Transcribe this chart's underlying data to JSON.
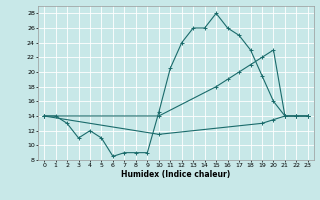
{
  "xlabel": "Humidex (Indice chaleur)",
  "xlim": [
    -0.5,
    23.5
  ],
  "ylim": [
    8,
    29
  ],
  "yticks": [
    8,
    10,
    12,
    14,
    16,
    18,
    20,
    22,
    24,
    26,
    28
  ],
  "xticks": [
    0,
    1,
    2,
    3,
    4,
    5,
    6,
    7,
    8,
    9,
    10,
    11,
    12,
    13,
    14,
    15,
    16,
    17,
    18,
    19,
    20,
    21,
    22,
    23
  ],
  "bg_color": "#c8e8e8",
  "grid_color": "#ffffff",
  "line_color": "#1a6b6b",
  "line1_x": [
    0,
    1,
    2,
    3,
    4,
    5,
    6,
    7,
    8,
    9,
    10,
    11,
    12,
    13,
    14,
    15,
    16,
    17,
    18,
    19,
    20,
    21,
    22,
    23
  ],
  "line1_y": [
    14,
    14,
    13,
    11,
    12,
    11,
    8.5,
    9,
    9,
    9,
    14.5,
    20.5,
    24,
    26,
    26,
    28,
    26,
    25,
    23,
    19.5,
    16,
    14,
    14,
    14
  ],
  "line2_x": [
    0,
    10,
    15,
    16,
    17,
    18,
    19,
    20,
    21,
    22,
    23
  ],
  "line2_y": [
    14,
    14,
    18,
    19,
    20,
    21,
    22,
    23,
    14,
    14,
    14
  ],
  "line3_x": [
    0,
    10,
    19,
    20,
    21,
    22,
    23
  ],
  "line3_y": [
    14,
    11.5,
    13,
    13.5,
    14,
    14,
    14
  ]
}
